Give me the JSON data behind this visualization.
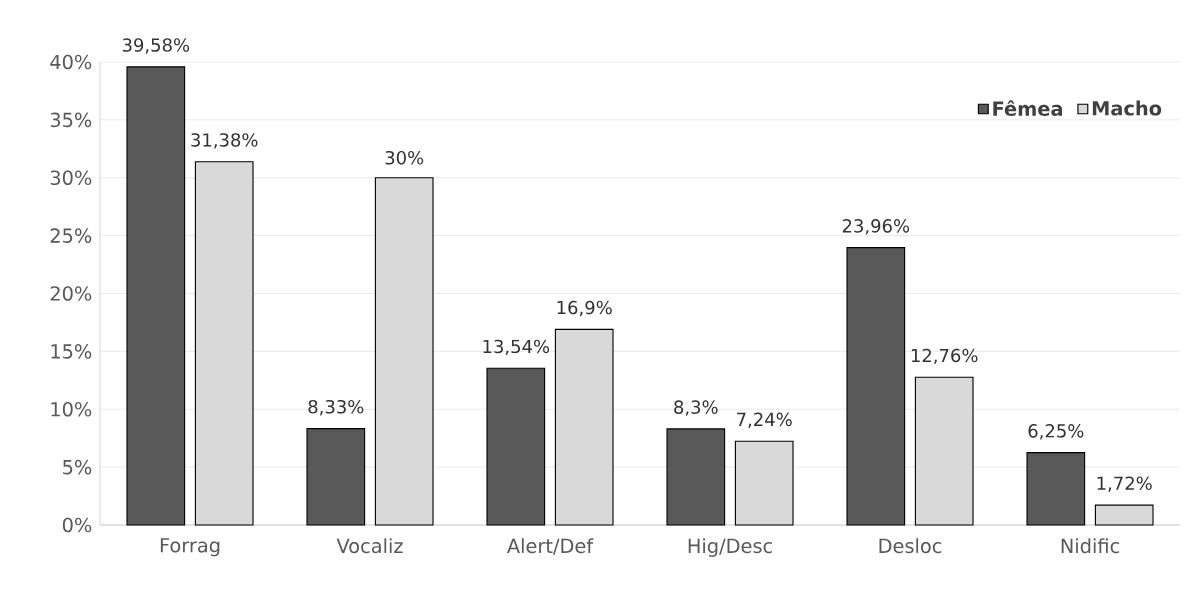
{
  "chart_data": {
    "type": "bar",
    "categories": [
      "Forrag",
      "Vocaliz",
      "Alert/Def",
      "Hig/Desc",
      "Desloc",
      "Nidific"
    ],
    "series": [
      {
        "name": "Fêmea",
        "color": "#595959",
        "values": [
          39.58,
          8.33,
          13.54,
          8.3,
          23.96,
          6.25
        ],
        "value_labels": [
          "39,58%",
          "8,33%",
          "13,54%",
          "8,3%",
          "23,96%",
          "6,25%"
        ]
      },
      {
        "name": "Macho",
        "color": "#d9d9d9",
        "values": [
          31.38,
          30,
          16.9,
          7.24,
          12.76,
          1.72
        ],
        "value_labels": [
          "31,38%",
          "30%",
          "16,9%",
          "7,24%",
          "12,76%",
          "1,72%"
        ]
      }
    ],
    "ylim": [
      0,
      40
    ],
    "yticks": [
      {
        "value": 0,
        "label": "0%"
      },
      {
        "value": 5,
        "label": "5%"
      },
      {
        "value": 10,
        "label": "10%"
      },
      {
        "value": 15,
        "label": "15%"
      },
      {
        "value": 20,
        "label": "20%"
      },
      {
        "value": 25,
        "label": "25%"
      },
      {
        "value": 30,
        "label": "30%"
      },
      {
        "value": 35,
        "label": "35%"
      },
      {
        "value": 40,
        "label": "40%"
      }
    ],
    "grid": "y",
    "legend": "top right"
  }
}
